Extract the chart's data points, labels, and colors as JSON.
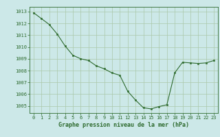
{
  "x": [
    0,
    1,
    2,
    3,
    4,
    5,
    6,
    7,
    8,
    9,
    10,
    11,
    12,
    13,
    14,
    15,
    16,
    17,
    18,
    19,
    20,
    21,
    22,
    23
  ],
  "y": [
    1012.9,
    1012.4,
    1011.9,
    1011.1,
    1010.1,
    1009.3,
    1009.0,
    1008.85,
    1008.4,
    1008.15,
    1007.8,
    1007.6,
    1006.25,
    1005.5,
    1004.85,
    1004.75,
    1004.95,
    1005.1,
    1007.8,
    1008.7,
    1008.65,
    1008.6,
    1008.65,
    1008.85
  ],
  "xlabel": "Graphe pression niveau de la mer (hPa)",
  "yticks": [
    1005,
    1006,
    1007,
    1008,
    1009,
    1010,
    1011,
    1012,
    1013
  ],
  "xticks": [
    0,
    1,
    2,
    3,
    4,
    5,
    6,
    7,
    8,
    9,
    10,
    11,
    12,
    13,
    14,
    15,
    16,
    17,
    18,
    19,
    20,
    21,
    22,
    23
  ],
  "ylim": [
    1004.4,
    1013.4
  ],
  "xlim": [
    -0.5,
    23.5
  ],
  "line_color": "#2d6a2d",
  "marker_color": "#2d6a2d",
  "bg_color": "#cce8e8",
  "grid_color": "#aac8aa",
  "xlabel_color": "#2d6a2d",
  "xlabel_fontsize": 6.0,
  "tick_fontsize": 5.0,
  "tick_color": "#2d6a2d"
}
